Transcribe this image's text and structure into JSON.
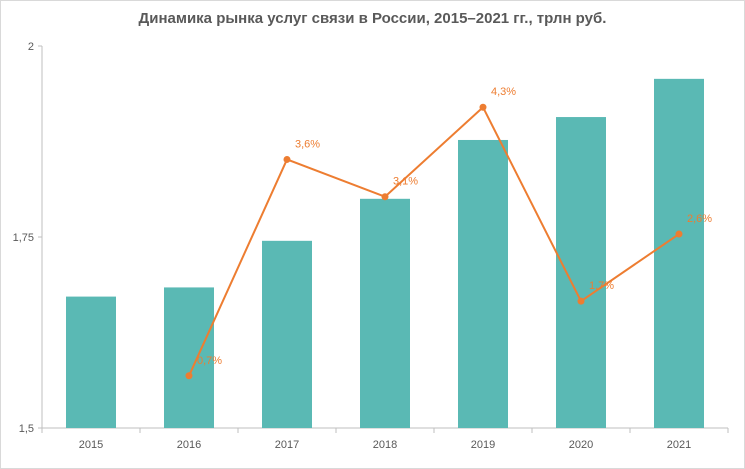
{
  "chart_data": {
    "type": "bar",
    "title": "Динамика рынка услуг связи в России, 2015–2021 гг., трлн руб.",
    "xlabel": "",
    "ylabel": "",
    "ylim": [
      1.5,
      2.0
    ],
    "yticks": [
      "1,5",
      "1,75",
      "2"
    ],
    "ytick_values": [
      1.5,
      1.75,
      2.0
    ],
    "categories": [
      "2015",
      "2016",
      "2017",
      "2018",
      "2019",
      "2020",
      "2021"
    ],
    "grid": false,
    "legend": "none",
    "series": [
      {
        "type": "bar",
        "values": [
          1.672,
          1.684,
          1.745,
          1.8,
          1.877,
          1.907,
          1.957
        ],
        "color": "#5ab9b4"
      },
      {
        "type": "line",
        "secondary_axis": true,
        "secondary_ylim": [
          0,
          5
        ],
        "values": [
          null,
          0.7,
          3.6,
          3.1,
          4.3,
          1.7,
          2.6
        ],
        "labels": [
          null,
          "0,7%",
          "3,6%",
          "3,1%",
          "4,3%",
          "1,7%",
          "2,6%"
        ],
        "color": "#ed7d31"
      }
    ]
  }
}
